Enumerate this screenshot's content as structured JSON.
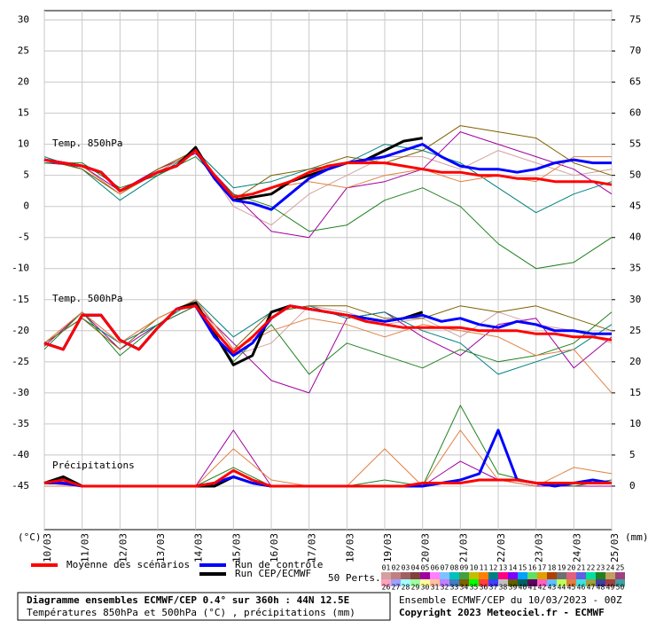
{
  "chart_data": {
    "type": "line",
    "title": "Diagramme ensembles ECMWF/CEP 0.4° sur 360h : 44N 12.5E",
    "subtitle": "Températures 850hPa et 500hPa (°C) , précipitations (mm)",
    "run_info": "Ensemble ECMWF/CEP du 10/03/2023 - 00Z",
    "copyright": "Copyright 2023 Meteociel.fr - ECMWF",
    "ylabel": "(°C)",
    "y2label": "(mm)",
    "annotations": [
      "Temp. 850hPa",
      "Temp. 500hPa",
      "Précipitations"
    ],
    "members_label": "50 Perts.",
    "categories": [
      "10/03",
      "11/03",
      "12/03",
      "13/03",
      "14/03",
      "15/03",
      "16/03",
      "17/03",
      "18/03",
      "19/03",
      "20/03",
      "21/03",
      "22/03",
      "23/03",
      "24/03",
      "25/03"
    ],
    "ylim": [
      -52,
      31.5
    ],
    "yticks": [
      30,
      25,
      20,
      15,
      10,
      5,
      0,
      -5,
      -10,
      -15,
      -20,
      -25,
      -30,
      -35,
      -40,
      -45
    ],
    "y2lim": [
      -7,
      76.5
    ],
    "y2ticks": [
      75,
      70,
      65,
      60,
      55,
      50,
      45,
      40,
      35,
      30,
      25,
      20,
      15,
      10,
      5,
      0
    ],
    "grid": true,
    "series": [
      {
        "name": "Moyenne des scénarios",
        "color": "#ff0000",
        "t850": [
          7.5,
          7,
          6.5,
          5.5,
          2.5,
          4,
          5.5,
          6.5,
          9,
          5,
          1.5,
          2,
          3,
          4,
          5.5,
          6.5,
          7,
          7,
          7,
          6.5,
          6,
          5.5,
          5.5,
          5,
          5,
          4.5,
          4.5,
          4,
          4,
          4,
          3.5
        ],
        "t500": [
          -22,
          -23,
          -17.5,
          -17.5,
          -21.5,
          -23,
          -19.5,
          -16.5,
          -16,
          -20,
          -23.5,
          -21,
          -18,
          -16,
          -16.5,
          -17,
          -17.5,
          -18.5,
          -19,
          -19.5,
          -19.5,
          -19.5,
          -19.5,
          -20,
          -20,
          -20,
          -20.5,
          -20.5,
          -21,
          -21,
          -21.5
        ],
        "precip": [
          0.5,
          1,
          0,
          0,
          0,
          0,
          0,
          0,
          0,
          0.5,
          2.5,
          1,
          0,
          0,
          0,
          0,
          0,
          0,
          0,
          0,
          0.5,
          0.5,
          0.5,
          1,
          1,
          1,
          0.5,
          0.5,
          0.5,
          0.5,
          0.5
        ]
      },
      {
        "name": "Run de contrôle",
        "color": "#0000ff",
        "t850": [
          7.5,
          7,
          6.5,
          5.5,
          2.5,
          4,
          5.5,
          6.5,
          9,
          4.5,
          1,
          0.5,
          -0.5,
          2,
          4.5,
          6,
          7,
          7.5,
          8,
          9,
          10,
          8,
          6.5,
          6,
          6,
          5.5,
          6,
          7,
          7.5,
          7,
          7
        ],
        "t500": [
          -22,
          -23,
          -17.5,
          -17.5,
          -21.5,
          -23,
          -19.5,
          -16.5,
          -16,
          -21,
          -24,
          -22,
          -18,
          -16,
          -16.5,
          -17,
          -17.5,
          -18,
          -18.5,
          -18,
          -17.5,
          -18.5,
          -18,
          -19,
          -19.5,
          -18.5,
          -19,
          -20,
          -20,
          -20.5,
          -20.5
        ],
        "precip": [
          0.5,
          0.5,
          0,
          0,
          0,
          0,
          0,
          0,
          0,
          0.5,
          1.5,
          0.5,
          0,
          0,
          0,
          0,
          0,
          0,
          0,
          0,
          0,
          0.5,
          1,
          2,
          9,
          1,
          0.5,
          0,
          0.5,
          1,
          0.5
        ]
      },
      {
        "name": "Run CEP/ECMWF",
        "color": "#000000",
        "t850": [
          7.5,
          7,
          6.5,
          5.5,
          2.5,
          4,
          5.5,
          6.5,
          9.5,
          4.5,
          1,
          1.5,
          2,
          4,
          5,
          6,
          7,
          7.5,
          9,
          10.5,
          11,
          null,
          null,
          null,
          null,
          null,
          null,
          null,
          null,
          null,
          null
        ],
        "t500": [
          -22,
          -23,
          -17.5,
          -17.5,
          -21.5,
          -23,
          -19.5,
          -16.5,
          -15.5,
          -20.5,
          -25.5,
          -24,
          -17,
          -16,
          -16.5,
          -17,
          -17.5,
          -18,
          -18.5,
          -18,
          -17,
          null,
          null,
          null,
          null,
          null,
          null,
          null,
          null,
          null,
          null
        ],
        "precip": [
          0.5,
          1.5,
          0,
          0,
          0,
          0,
          0,
          0,
          0,
          0,
          1.5,
          0.5,
          0,
          0,
          0,
          0,
          0,
          0,
          0,
          0,
          0,
          null,
          null,
          null,
          null,
          null,
          null,
          null,
          null,
          null,
          null
        ]
      }
    ],
    "members": [
      {
        "name": "01",
        "color": "#d4a0a0",
        "t850": [
          7.5,
          6,
          2,
          5.5,
          9,
          0,
          -3,
          2,
          5,
          8,
          8,
          6,
          9,
          7,
          5,
          6
        ],
        "t500": [
          -22,
          -17,
          -22,
          -18,
          -15,
          -24,
          -22,
          -16,
          -17,
          -19,
          -18,
          -21,
          -17,
          -19,
          -20,
          -22
        ]
      },
      {
        "name": "02",
        "color": "#c08080"
      },
      {
        "name": "03",
        "color": "#a06060"
      },
      {
        "name": "04",
        "color": "#804040"
      },
      {
        "name": "05",
        "color": "#a000a0",
        "t850": [
          7,
          6.5,
          2.5,
          6,
          8.5,
          2,
          -4,
          -5,
          3,
          4,
          6,
          12,
          10,
          8,
          6,
          2
        ],
        "t500": [
          -22.5,
          -17,
          -23,
          -19,
          -16,
          -22,
          -28,
          -30,
          -18,
          -17,
          -21,
          -24,
          -19,
          -18,
          -26,
          -21
        ],
        "precip": [
          0.5,
          0,
          0,
          0,
          0,
          9,
          0,
          0,
          0,
          0,
          0,
          4,
          1,
          0,
          0,
          0
        ]
      },
      {
        "name": "06",
        "color": "#ff80ff"
      },
      {
        "name": "07",
        "color": "#80c0ff"
      },
      {
        "name": "08",
        "color": "#00c0c0"
      },
      {
        "name": "09",
        "color": "#40a040"
      },
      {
        "name": "10",
        "color": "#c0c000"
      },
      {
        "name": "11",
        "color": "#ff8000"
      },
      {
        "name": "12",
        "color": "#008080",
        "t850": [
          8,
          6,
          1,
          5,
          9,
          3,
          4,
          6,
          7,
          10,
          9,
          7,
          3,
          -1,
          2,
          4
        ],
        "t500": [
          -22,
          -18,
          -22,
          -19,
          -15,
          -21,
          -17,
          -16,
          -18,
          -17,
          -20,
          -22,
          -27,
          -25,
          -23,
          -19
        ]
      },
      {
        "name": "13",
        "color": "#ff0080"
      },
      {
        "name": "14",
        "color": "#8000ff"
      },
      {
        "name": "15",
        "color": "#00a0ff"
      },
      {
        "name": "16",
        "color": "#60e060"
      },
      {
        "name": "17",
        "color": "#e0a000"
      },
      {
        "name": "18",
        "color": "#b04000"
      },
      {
        "name": "19",
        "color": "#707070"
      },
      {
        "name": "20",
        "color": "#e06080"
      },
      {
        "name": "21",
        "color": "#6060e0"
      },
      {
        "name": "22",
        "color": "#00e0a0"
      },
      {
        "name": "23",
        "color": "#208020",
        "t850": [
          7,
          7,
          3,
          5,
          8,
          2,
          0,
          -4,
          -3,
          1,
          3,
          0,
          -6,
          -10,
          -9,
          -5
        ],
        "t500": [
          -23,
          -17,
          -24,
          -19,
          -16,
          -25,
          -19,
          -27,
          -22,
          -24,
          -26,
          -23,
          -25,
          -24,
          -22,
          -17
        ],
        "precip": [
          0,
          0,
          0,
          0,
          0,
          3,
          0,
          0,
          0,
          1,
          0,
          13,
          2,
          0.5,
          0,
          1
        ]
      },
      {
        "name": "24",
        "color": "#c0a060"
      },
      {
        "name": "25",
        "color": "#a04080"
      },
      {
        "name": "26",
        "color": "#ffa0c0"
      },
      {
        "name": "27",
        "color": "#a0a0ff"
      },
      {
        "name": "28",
        "color": "#a0ffff"
      },
      {
        "name": "29",
        "color": "#a0ffa0"
      },
      {
        "name": "30",
        "color": "#ffffa0"
      },
      {
        "name": "31",
        "color": "#ffc0a0"
      },
      {
        "name": "32",
        "color": "#c080ff"
      },
      {
        "name": "33",
        "color": "#4080c0"
      },
      {
        "name": "34",
        "color": "#806000",
        "t850": [
          7.5,
          6,
          2,
          6,
          9,
          1,
          5,
          6,
          8,
          7,
          9,
          13,
          12,
          11,
          7,
          5
        ],
        "t500": [
          -22,
          -18,
          -23,
          -18,
          -15,
          -23,
          -17,
          -16,
          -16,
          -18,
          -18,
          -16,
          -17,
          -16,
          -18,
          -20
        ]
      },
      {
        "name": "35",
        "color": "#00ff00"
      },
      {
        "name": "36",
        "color": "#ff4040"
      },
      {
        "name": "37",
        "color": "#4040ff"
      },
      {
        "name": "38",
        "color": "#c0c0c0"
      },
      {
        "name": "39",
        "color": "#606000"
      },
      {
        "name": "40",
        "color": "#006060"
      },
      {
        "name": "41",
        "color": "#600060"
      },
      {
        "name": "42",
        "color": "#ff60c0"
      },
      {
        "name": "43",
        "color": "#60c0ff"
      },
      {
        "name": "44",
        "color": "#c0ff60"
      },
      {
        "name": "45",
        "color": "#e08040",
        "t850": [
          7.5,
          6.5,
          2,
          5.5,
          9,
          1,
          3,
          4,
          3,
          5,
          6,
          4,
          5,
          4,
          8,
          8
        ],
        "t500": [
          -22,
          -17,
          -22,
          -18,
          -15,
          -23,
          -20,
          -18,
          -19,
          -21,
          -19,
          -20,
          -21,
          -24,
          -23,
          -30
        ],
        "precip": [
          0,
          0,
          0,
          0,
          0,
          6,
          1,
          0,
          0,
          6,
          0,
          9,
          1,
          0,
          3,
          2
        ]
      },
      {
        "name": "46",
        "color": "#40e0e0"
      },
      {
        "name": "47",
        "color": "#a0a040"
      },
      {
        "name": "48",
        "color": "#4040a0"
      },
      {
        "name": "49",
        "color": "#a04040"
      },
      {
        "name": "50",
        "color": "#40a0a0"
      }
    ]
  }
}
